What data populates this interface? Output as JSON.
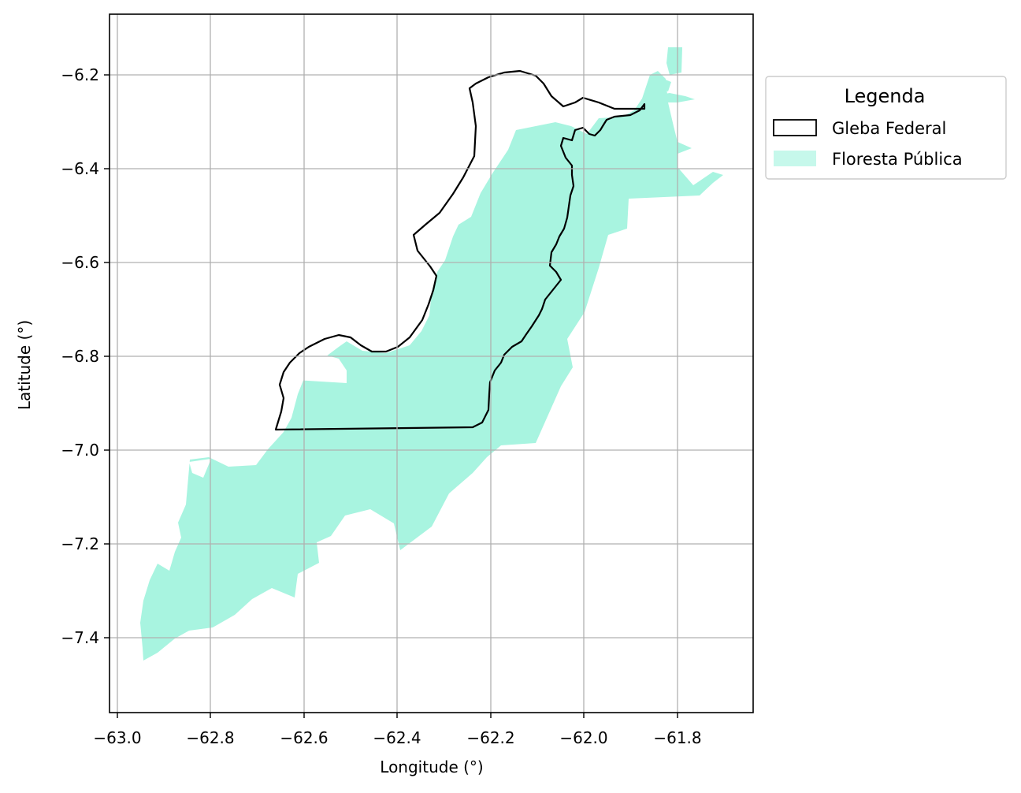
{
  "map": {
    "xlabel": "Longitude (°)",
    "ylabel": "Latitude (°)",
    "x_ticks": [
      "−63.0",
      "−62.8",
      "−62.6",
      "−62.4",
      "−62.2",
      "−62.0",
      "−61.8"
    ],
    "y_ticks": [
      "−6.2",
      "−6.4",
      "−6.6",
      "−6.8",
      "−7.0",
      "−7.2",
      "−7.4"
    ],
    "xlim": [
      -63.02,
      -61.64
    ],
    "ylim": [
      -7.56,
      -6.07
    ],
    "grid": true,
    "colors": {
      "gleba_outline": "#000000",
      "floresta_fill": "#a8f4e0",
      "grid": "#b0b0b0"
    }
  },
  "legend": {
    "title": "Legenda",
    "placement": "outside-right-top",
    "items": [
      {
        "label": "Gleba Federal",
        "style": "outline",
        "color": "#000000"
      },
      {
        "label": "Floresta Pública",
        "style": "fill",
        "color": "#a8f4e0"
      }
    ]
  }
}
